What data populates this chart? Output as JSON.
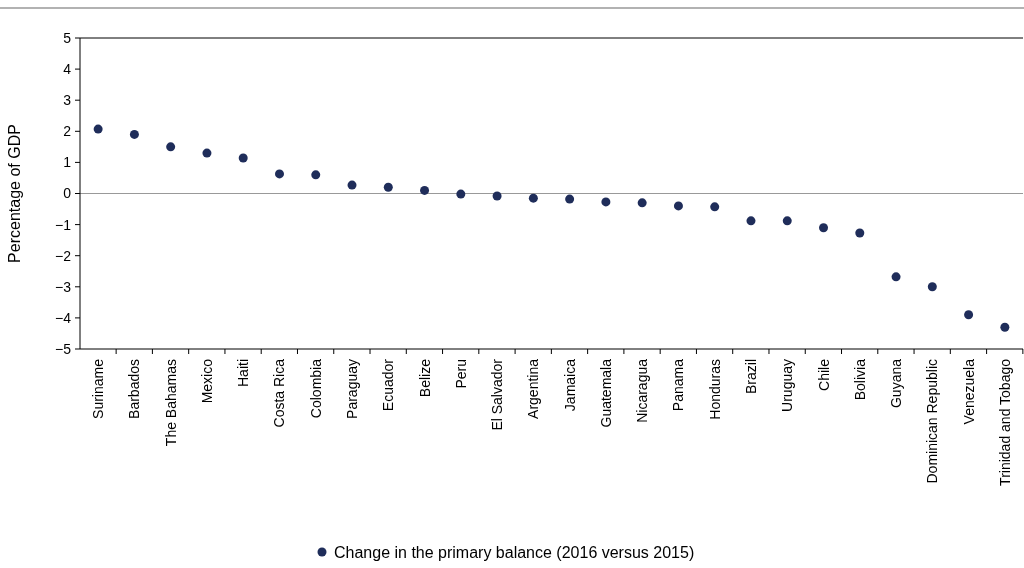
{
  "chart_data": {
    "type": "scatter",
    "ylabel": "Percentage of GDP",
    "categories": [
      "Suriname",
      "Barbados",
      "The Bahamas",
      "Mexico",
      "Haiti",
      "Costa Rica",
      "Colombia",
      "Paraguay",
      "Ecuador",
      "Belize",
      "Peru",
      "El Salvador",
      "Argentina",
      "Jamaica",
      "Guatemala",
      "Nicaragua",
      "Panama",
      "Honduras",
      "Brazil",
      "Uruguay",
      "Chile",
      "Bolivia",
      "Guyana",
      "Dominican Republic",
      "Venezuela",
      "Trinidad and Tobago"
    ],
    "series": [
      {
        "name": "Change in the primary balance (2016 versus 2015)",
        "color": "#1f2d5a",
        "values": [
          2.07,
          1.9,
          1.5,
          1.3,
          1.14,
          0.63,
          0.6,
          0.27,
          0.2,
          0.1,
          -0.02,
          -0.08,
          -0.15,
          -0.18,
          -0.27,
          -0.3,
          -0.4,
          -0.43,
          -0.88,
          -0.88,
          -1.1,
          -1.27,
          -2.68,
          -3.0,
          -3.9,
          -4.3
        ]
      }
    ],
    "ylim": [
      -5,
      5
    ],
    "yticks": [
      {
        "value": -5,
        "label": "−5"
      },
      {
        "value": -4,
        "label": "−4"
      },
      {
        "value": -3,
        "label": "−3"
      },
      {
        "value": -2,
        "label": "−2"
      },
      {
        "value": -1,
        "label": "−1"
      },
      0,
      1,
      2,
      3,
      4,
      5
    ],
    "ref_lines": [
      {
        "axis": "y",
        "value": 5,
        "color": "#000000"
      },
      {
        "axis": "y",
        "value": 0,
        "color": "#999999"
      }
    ],
    "marker": "circle",
    "legend": "bottom",
    "grid": false
  }
}
